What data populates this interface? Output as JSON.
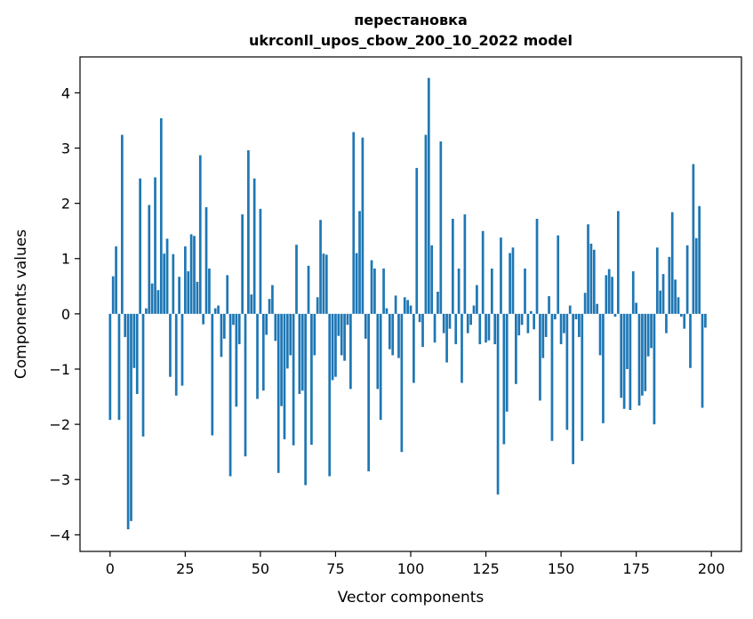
{
  "chart_data": {
    "type": "bar",
    "title_line1": "перестановка",
    "title_line2": "ukrconll_upos_cbow_200_10_2022 model",
    "xlabel": "Vector components",
    "ylabel": "Components values",
    "xlim": [
      -10,
      210
    ],
    "ylim": [
      -4.3,
      4.65
    ],
    "xticks": [
      0,
      25,
      50,
      75,
      100,
      125,
      150,
      175,
      200
    ],
    "yticks": [
      -4,
      -3,
      -2,
      -1,
      0,
      1,
      2,
      3,
      4
    ],
    "bar_color": "#1f77b4",
    "grid": false,
    "values": [
      -1.92,
      0.68,
      1.22,
      -1.92,
      3.24,
      -0.42,
      -3.9,
      -3.75,
      -0.98,
      -1.45,
      2.45,
      -2.22,
      0.1,
      1.97,
      0.55,
      2.47,
      0.43,
      3.54,
      1.09,
      1.36,
      -1.14,
      1.08,
      -1.48,
      0.67,
      -1.3,
      1.22,
      0.77,
      1.44,
      1.41,
      0.58,
      2.87,
      -0.19,
      1.93,
      0.82,
      -2.2,
      0.1,
      0.15,
      -0.78,
      -0.45,
      0.7,
      -2.94,
      -0.2,
      -1.68,
      -0.55,
      1.8,
      -2.58,
      2.96,
      0.35,
      2.45,
      -1.54,
      1.9,
      -1.39,
      -0.38,
      0.27,
      0.52,
      -0.49,
      -2.88,
      -1.67,
      -2.27,
      -0.99,
      -0.75,
      -2.38,
      1.25,
      -1.45,
      -1.39,
      -3.1,
      0.87,
      -2.37,
      -0.75,
      0.3,
      1.7,
      1.09,
      1.07,
      -2.94,
      -1.2,
      -1.14,
      -0.4,
      -0.75,
      -0.85,
      -0.2,
      -1.36,
      3.29,
      1.1,
      1.86,
      3.19,
      -0.45,
      -2.85,
      0.97,
      0.82,
      -1.36,
      -1.92,
      0.82,
      0.1,
      -0.64,
      -0.75,
      0.33,
      -0.8,
      -2.5,
      0.3,
      0.25,
      0.15,
      -1.25,
      2.64,
      -0.15,
      -0.6,
      3.24,
      4.27,
      1.24,
      -0.52,
      0.4,
      3.12,
      -0.35,
      -0.88,
      -0.27,
      1.72,
      -0.55,
      0.82,
      -1.25,
      1.8,
      -0.35,
      -0.2,
      0.15,
      0.52,
      -0.55,
      1.5,
      -0.52,
      -0.48,
      0.82,
      -0.55,
      -3.27,
      1.38,
      -2.36,
      -1.77,
      1.1,
      1.2,
      -1.27,
      -0.39,
      -0.2,
      0.82,
      -0.35,
      0.05,
      -0.28,
      1.72,
      -1.57,
      -0.8,
      -0.42,
      0.32,
      -2.3,
      -0.1,
      1.42,
      -0.55,
      -0.35,
      -2.1,
      0.15,
      -2.72,
      -0.1,
      -0.42,
      -2.3,
      0.38,
      1.62,
      1.27,
      1.16,
      0.18,
      -0.75,
      -1.98,
      0.7,
      0.81,
      0.67,
      -0.05,
      1.86,
      -1.52,
      -1.72,
      -1.0,
      -1.74,
      0.77,
      0.2,
      -1.66,
      -1.48,
      -1.4,
      -0.77,
      -0.62,
      -2.0,
      1.2,
      0.42,
      0.72,
      -0.35,
      1.03,
      1.84,
      0.62,
      0.3,
      -0.05,
      -0.27,
      1.24,
      -0.98,
      2.71,
      1.37,
      1.95,
      -1.7,
      -0.25
    ]
  }
}
